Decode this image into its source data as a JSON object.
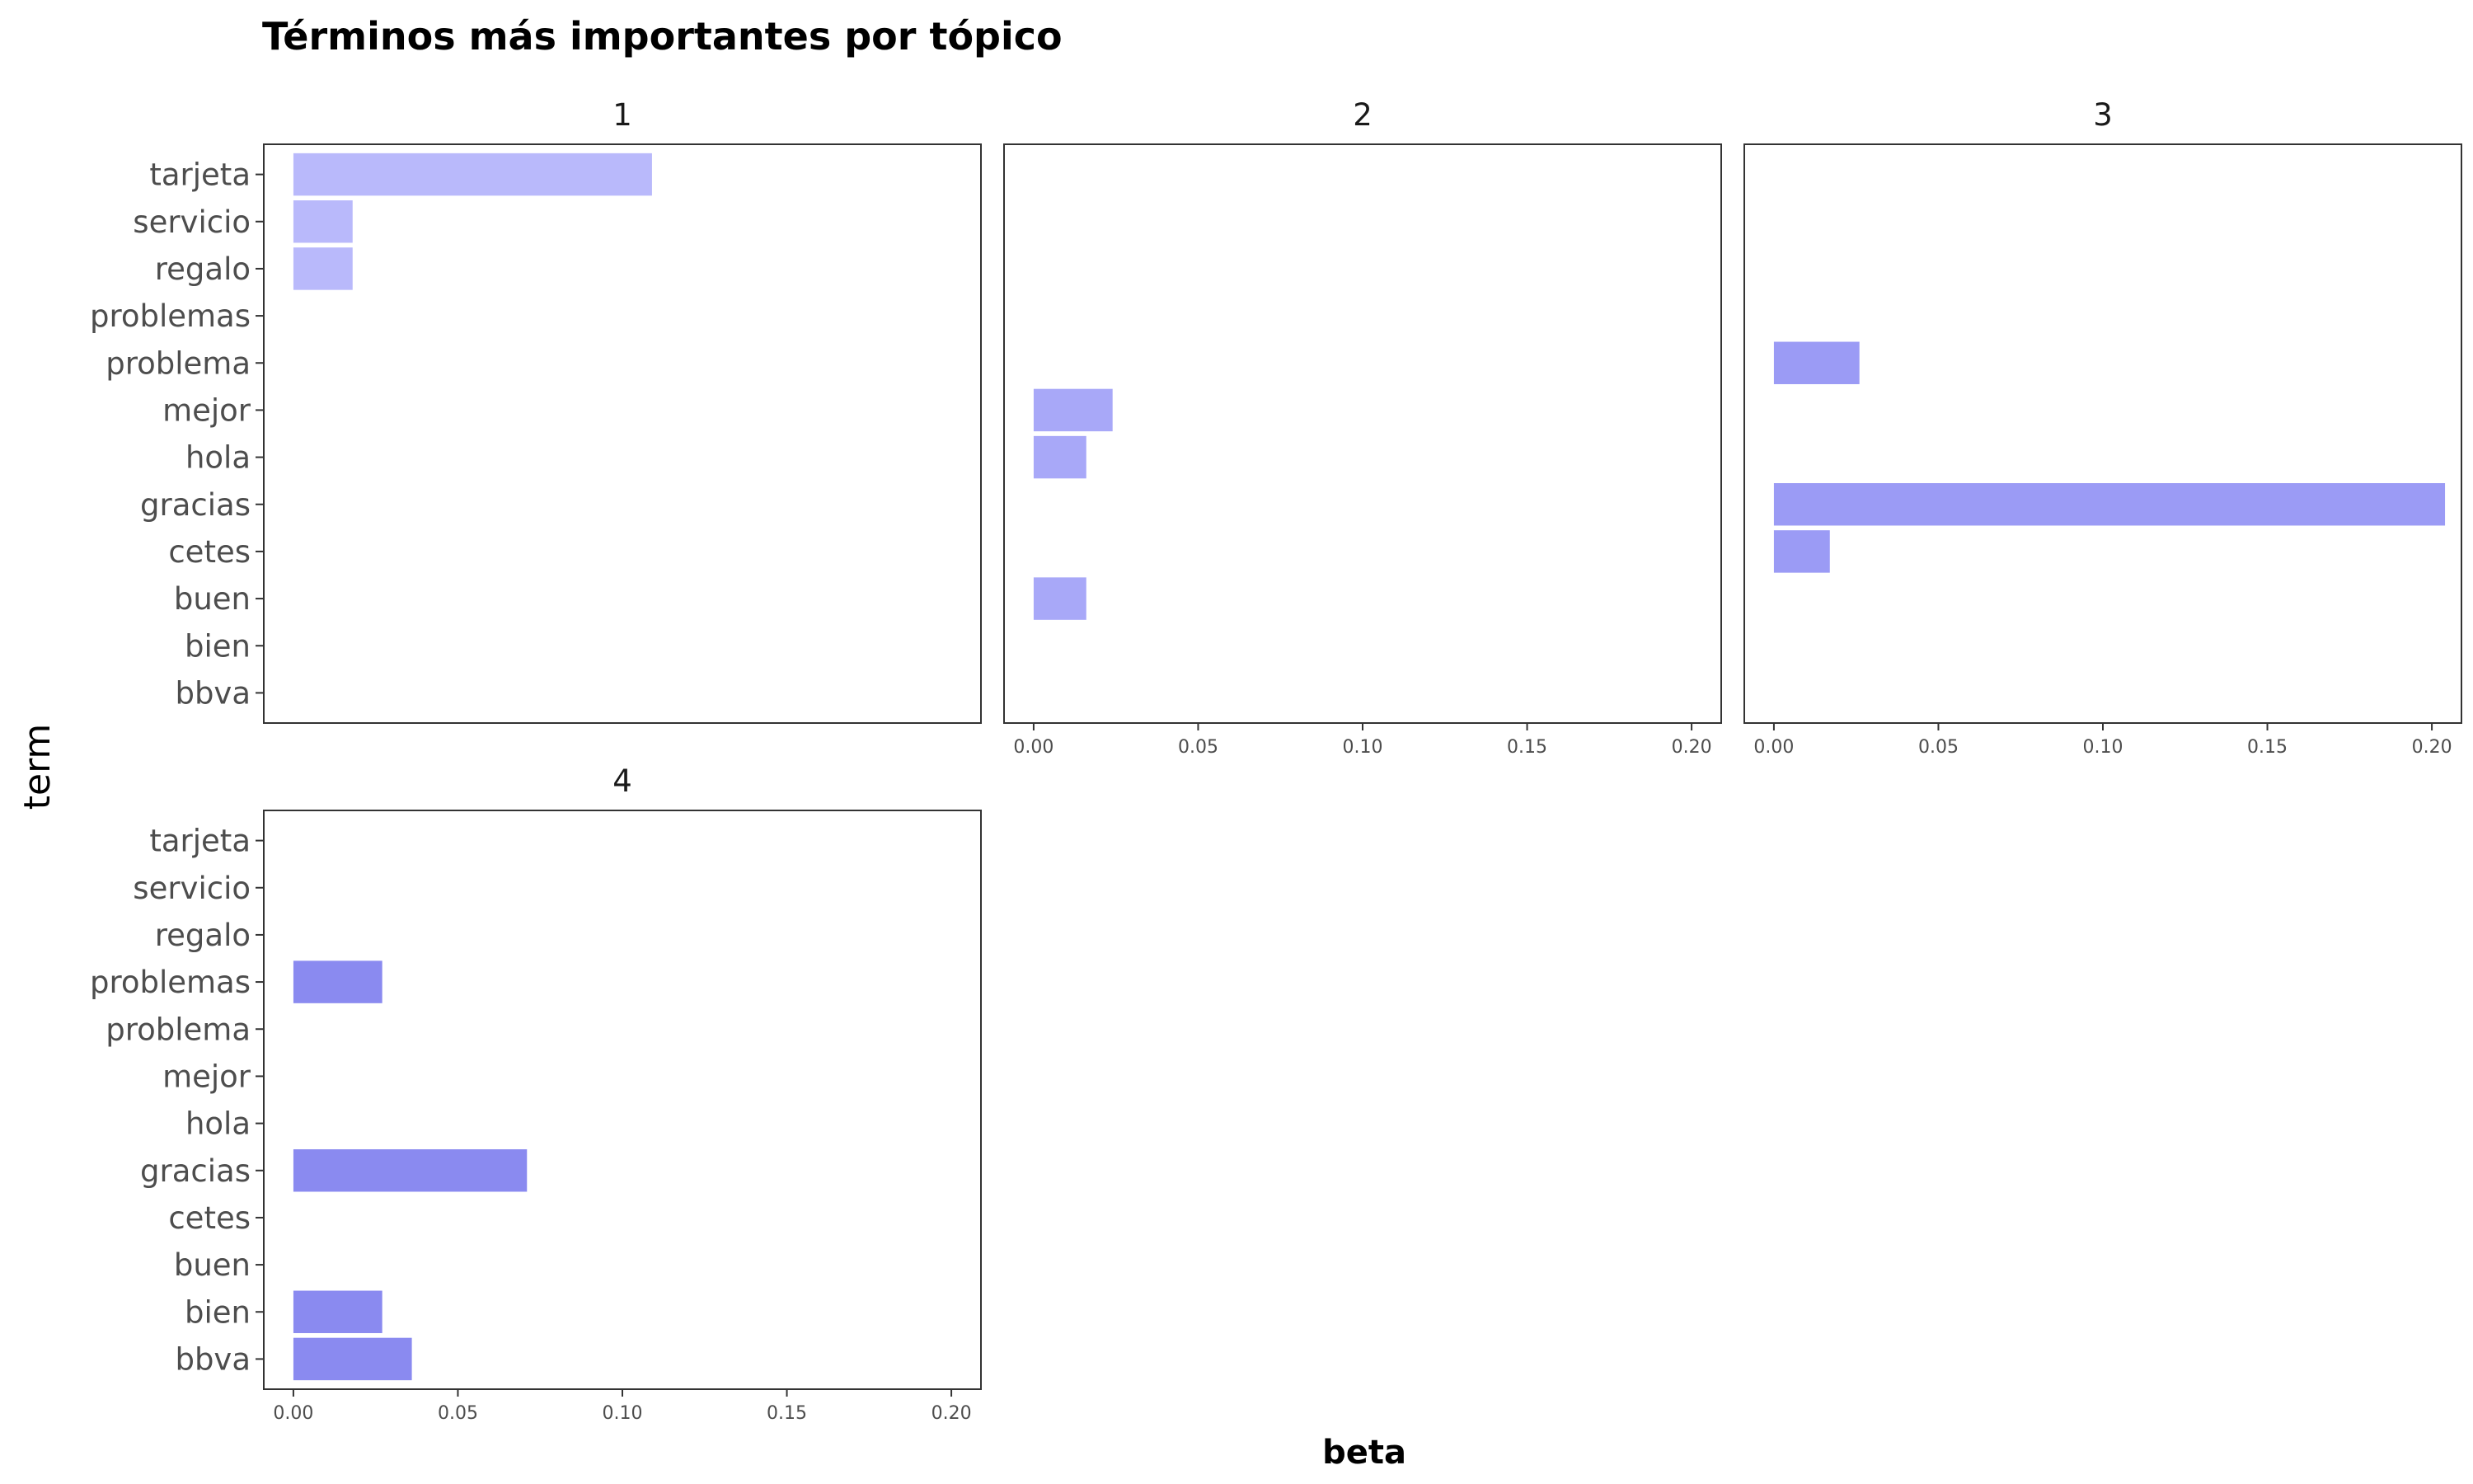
{
  "chart_data": {
    "type": "bar",
    "orientation": "horizontal",
    "title": "Términos más importantes por tópico",
    "xlabel": "beta",
    "ylabel": "term",
    "xlim": [
      0,
      0.2
    ],
    "x_ticks": [
      "0.00",
      "0.05",
      "0.10",
      "0.15",
      "0.20"
    ],
    "categories": [
      "tarjeta",
      "servicio",
      "regalo",
      "problemas",
      "problema",
      "mejor",
      "hola",
      "gracias",
      "cetes",
      "buen",
      "bien",
      "bbva"
    ],
    "grid": false,
    "legend": "none",
    "series": [
      {
        "name": "1",
        "color": "#b9b9fb",
        "values": [
          0.109,
          0.018,
          0.018,
          0,
          0,
          0,
          0,
          0,
          0,
          0,
          0,
          0
        ]
      },
      {
        "name": "2",
        "color": "#a8a8f8",
        "values": [
          0,
          0,
          0,
          0,
          0,
          0.024,
          0.016,
          0,
          0,
          0.016,
          0,
          0
        ]
      },
      {
        "name": "3",
        "color": "#9b9bf5",
        "values": [
          0,
          0,
          0,
          0,
          0.026,
          0,
          0,
          0.204,
          0.017,
          0,
          0,
          0
        ]
      },
      {
        "name": "4",
        "color": "#8a8af0",
        "values": [
          0,
          0,
          0,
          0.027,
          0,
          0,
          0,
          0.071,
          0,
          0,
          0.027,
          0.036
        ]
      }
    ]
  }
}
